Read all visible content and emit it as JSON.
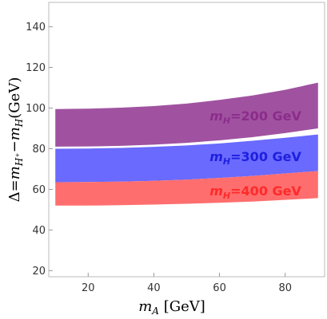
{
  "chart_data": {
    "type": "area",
    "xlabel": "m_A [GeV]",
    "ylabel": "Δ=m_{H⁺}−m_H(GeV)",
    "xlim": [
      8,
      92
    ],
    "ylim": [
      17,
      152
    ],
    "xticks": [
      20,
      40,
      60,
      80
    ],
    "yticks": [
      20,
      40,
      60,
      80,
      100,
      120,
      140
    ],
    "x_tick_labels": [
      "20",
      "40",
      "60",
      "80"
    ],
    "y_tick_labels": [
      "20",
      "40",
      "60",
      "80",
      "100",
      "120",
      "140"
    ],
    "grid": false,
    "x": [
      10,
      20,
      30,
      40,
      50,
      60,
      70,
      80,
      90
    ],
    "series": [
      {
        "label_parts": [
          "m",
          "H",
          "=200 GeV"
        ],
        "color": "#a052a0",
        "upper": [
          99.5,
          99.7,
          100.2,
          101.0,
          102.2,
          104.0,
          106.2,
          109.0,
          112.5
        ],
        "lower": [
          81.0,
          81.1,
          81.4,
          82.0,
          82.9,
          84.1,
          85.7,
          87.7,
          90.0
        ]
      },
      {
        "label_parts": [
          "m",
          "H",
          "=300 GeV"
        ],
        "color": "#6a6aff",
        "upper": [
          80.0,
          80.1,
          80.4,
          80.9,
          81.6,
          82.6,
          83.9,
          85.4,
          87.0
        ],
        "lower": [
          63.5,
          63.6,
          63.8,
          64.2,
          64.8,
          65.6,
          66.6,
          67.8,
          69.0
        ]
      },
      {
        "label_parts": [
          "m",
          "H",
          "=400 GeV"
        ],
        "color": "#ff6e6e",
        "upper": [
          63.5,
          63.6,
          63.8,
          64.2,
          64.8,
          65.6,
          66.6,
          67.8,
          69.0
        ],
        "lower": [
          52.0,
          52.0,
          52.2,
          52.5,
          52.9,
          53.4,
          54.0,
          54.8,
          55.7
        ]
      }
    ],
    "band_label_colors": [
      "#8b2c8b",
      "#1f1fe0",
      "#ff2a2a"
    ],
    "band_label_anchor_x": [
      57,
      57,
      57
    ],
    "band_label_anchor_y": [
      94,
      74,
      57
    ]
  }
}
